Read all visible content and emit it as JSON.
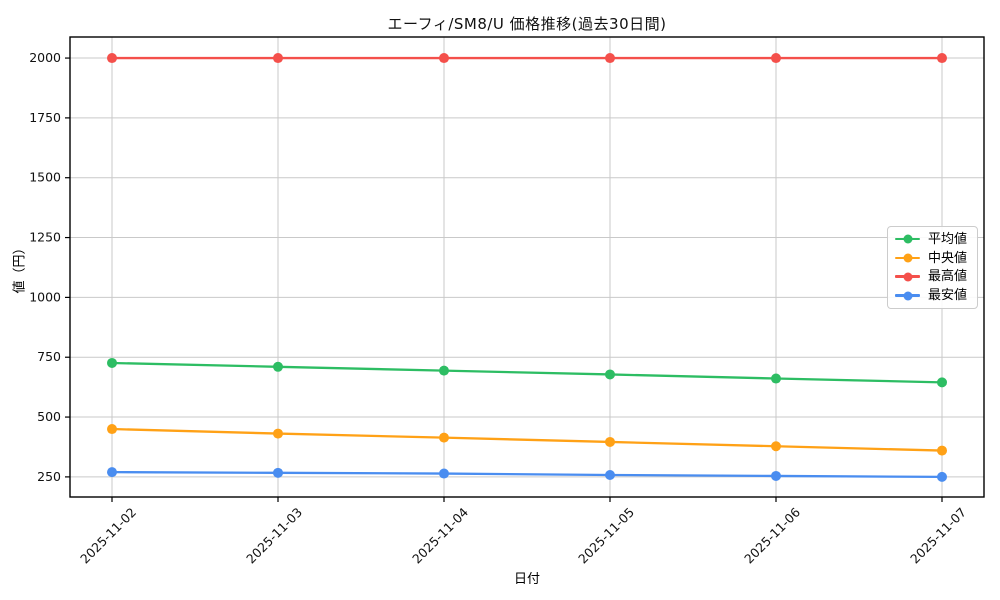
{
  "chart_data": {
    "type": "line",
    "title": "エーフィ/SM8/U 価格推移(過去30日間)",
    "xlabel": "日付",
    "ylabel": "値（円）",
    "categories": [
      "2025-11-02",
      "2025-11-03",
      "2025-11-04",
      "2025-11-05",
      "2025-11-06",
      "2025-11-07"
    ],
    "series": [
      {
        "name": "平均値",
        "color": "#2dbd63",
        "values": [
          726,
          710,
          694,
          678,
          661,
          645
        ]
      },
      {
        "name": "中央値",
        "color": "#ffa116",
        "values": [
          450,
          431,
          414,
          396,
          378,
          360
        ]
      },
      {
        "name": "最高値",
        "color": "#f4504b",
        "values": [
          2000,
          2000,
          2000,
          2000,
          2000,
          2000
        ]
      },
      {
        "name": "最安値",
        "color": "#4a8df0",
        "values": [
          270,
          267,
          264,
          258,
          254,
          250
        ]
      }
    ],
    "yticks": [
      250,
      500,
      750,
      1000,
      1250,
      1500,
      1750,
      2000
    ],
    "ylim": [
      166,
      2088
    ],
    "grid": true,
    "grid_color": "#c9c9c9",
    "axis_color": "#000000",
    "tick_label_color": "#111111",
    "legend_position": "center-right",
    "marker": "circle"
  }
}
